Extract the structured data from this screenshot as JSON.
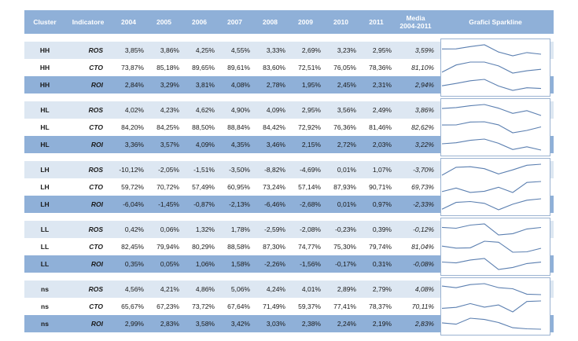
{
  "header": {
    "cluster": "Cluster",
    "indicatore": "Indicatore",
    "years": [
      "2004",
      "2005",
      "2006",
      "2007",
      "2008",
      "2009",
      "2010",
      "2011"
    ],
    "media_line1": "Media",
    "media_line2": "2004-2011",
    "sparkline": "Grafici Sparkline"
  },
  "groups": [
    {
      "cluster": "HH",
      "rows": [
        {
          "ind": "ROS",
          "vals": [
            "3,85%",
            "3,86%",
            "4,25%",
            "4,55%",
            "3,33%",
            "2,69%",
            "3,23%",
            "2,95%"
          ],
          "avg": "3,59%",
          "spark": [
            3.85,
            3.86,
            4.25,
            4.55,
            3.33,
            2.69,
            3.23,
            2.95
          ]
        },
        {
          "ind": "CTO",
          "vals": [
            "73,87%",
            "85,18%",
            "89,65%",
            "89,61%",
            "83,60%",
            "72,51%",
            "76,05%",
            "78,36%"
          ],
          "avg": "81,10%",
          "spark": [
            73.87,
            85.18,
            89.65,
            89.61,
            83.6,
            72.51,
            76.05,
            78.36
          ]
        },
        {
          "ind": "ROI",
          "vals": [
            "2,84%",
            "3,29%",
            "3,81%",
            "4,08%",
            "2,78%",
            "1,95%",
            "2,45%",
            "2,31%"
          ],
          "avg": "2,94%",
          "spark": [
            2.84,
            3.29,
            3.81,
            4.08,
            2.78,
            1.95,
            2.45,
            2.31
          ]
        }
      ]
    },
    {
      "cluster": "HL",
      "rows": [
        {
          "ind": "ROS",
          "vals": [
            "4,02%",
            "4,23%",
            "4,62%",
            "4,90%",
            "4,09%",
            "2,95%",
            "3,56%",
            "2,49%"
          ],
          "avg": "3,86%",
          "spark": [
            4.02,
            4.23,
            4.62,
            4.9,
            4.09,
            2.95,
            3.56,
            2.49
          ]
        },
        {
          "ind": "CTO",
          "vals": [
            "84,20%",
            "84,25%",
            "88,50%",
            "88,84%",
            "84,42%",
            "72,92%",
            "76,36%",
            "81,46%"
          ],
          "avg": "82,62%",
          "spark": [
            84.2,
            84.25,
            88.5,
            88.84,
            84.42,
            72.92,
            76.36,
            81.46
          ]
        },
        {
          "ind": "ROI",
          "vals": [
            "3,36%",
            "3,57%",
            "4,09%",
            "4,35%",
            "3,46%",
            "2,15%",
            "2,72%",
            "2,03%"
          ],
          "avg": "3,22%",
          "spark": [
            3.36,
            3.57,
            4.09,
            4.35,
            3.46,
            2.15,
            2.72,
            2.03
          ]
        }
      ]
    },
    {
      "cluster": "LH",
      "rows": [
        {
          "ind": "ROS",
          "vals": [
            "-10,12%",
            "-2,05%",
            "-1,51%",
            "-3,50%",
            "-8,82%",
            "-4,69%",
            "0,01%",
            "1,07%"
          ],
          "avg": "-3,70%",
          "spark": [
            -10.12,
            -2.05,
            -1.51,
            -3.5,
            -8.82,
            -4.69,
            0.01,
            1.07
          ]
        },
        {
          "ind": "CTO",
          "vals": [
            "59,72%",
            "70,72%",
            "57,49%",
            "60,95%",
            "73,24%",
            "57,14%",
            "87,93%",
            "90,71%"
          ],
          "avg": "69,73%",
          "spark": [
            59.72,
            70.72,
            57.49,
            60.95,
            73.24,
            57.14,
            87.93,
            90.71
          ]
        },
        {
          "ind": "ROI",
          "vals": [
            "-6,04%",
            "-1,45%",
            "-0,87%",
            "-2,13%",
            "-6,46%",
            "-2,68%",
            "0,01%",
            "0,97%"
          ],
          "avg": "-2,33%",
          "spark": [
            -6.04,
            -1.45,
            -0.87,
            -2.13,
            -6.46,
            -2.68,
            0.01,
            0.97
          ]
        }
      ]
    },
    {
      "cluster": "LL",
      "rows": [
        {
          "ind": "ROS",
          "vals": [
            "0,42%",
            "0,06%",
            "1,32%",
            "1,78%",
            "-2,59%",
            "-2,08%",
            "-0,23%",
            "0,39%"
          ],
          "avg": "-0,12%",
          "spark": [
            0.42,
            0.06,
            1.32,
            1.78,
            -2.59,
            -2.08,
            -0.23,
            0.39
          ]
        },
        {
          "ind": "CTO",
          "vals": [
            "82,45%",
            "79,94%",
            "80,29%",
            "88,58%",
            "87,30%",
            "74,77%",
            "75,30%",
            "79,74%"
          ],
          "avg": "81,04%",
          "spark": [
            82.45,
            79.94,
            80.29,
            88.58,
            87.3,
            74.77,
            75.3,
            79.74
          ]
        },
        {
          "ind": "ROI",
          "vals": [
            "0,35%",
            "0,05%",
            "1,06%",
            "1,58%",
            "-2,26%",
            "-1,56%",
            "-0,17%",
            "0,31%"
          ],
          "avg": "-0,08%",
          "spark": [
            0.35,
            0.05,
            1.06,
            1.58,
            -2.26,
            -1.56,
            -0.17,
            0.31
          ]
        }
      ]
    },
    {
      "cluster": "ns",
      "rows": [
        {
          "ind": "ROS",
          "vals": [
            "4,56%",
            "4,21%",
            "4,86%",
            "5,06%",
            "4,24%",
            "4,01%",
            "2,89%",
            "2,79%"
          ],
          "avg": "4,08%",
          "spark": [
            4.56,
            4.21,
            4.86,
            5.06,
            4.24,
            4.01,
            2.89,
            2.79
          ]
        },
        {
          "ind": "CTO",
          "vals": [
            "65,67%",
            "67,23%",
            "73,72%",
            "67,64%",
            "71,49%",
            "59,37%",
            "77,41%",
            "78,37%"
          ],
          "avg": "70,11%",
          "spark": [
            65.67,
            67.23,
            73.72,
            67.64,
            71.49,
            59.37,
            77.41,
            78.37
          ]
        },
        {
          "ind": "ROI",
          "vals": [
            "2,99%",
            "2,83%",
            "3,58%",
            "3,42%",
            "3,03%",
            "2,38%",
            "2,24%",
            "2,19%"
          ],
          "avg": "2,83%",
          "spark": [
            2.99,
            2.83,
            3.58,
            3.42,
            3.03,
            2.38,
            2.24,
            2.19
          ]
        }
      ]
    }
  ],
  "colors": {
    "header_bg": "#8fb0d8",
    "row_light": "#dde7f2",
    "row_dark": "#8fb0d8",
    "sparkline": "#5b7fb0"
  }
}
